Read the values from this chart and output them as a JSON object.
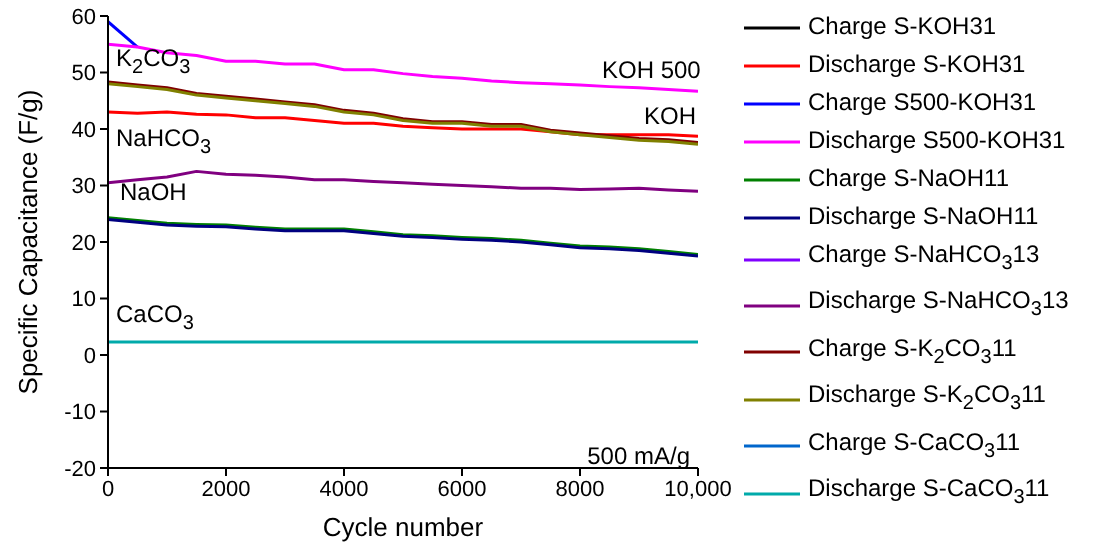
{
  "chart_data": {
    "type": "line",
    "xlabel": "Cycle number",
    "ylabel": "Specific Capacitance (F/g)",
    "x": [
      0,
      500,
      1000,
      1500,
      2000,
      2500,
      3000,
      3500,
      4000,
      4500,
      5000,
      5500,
      6000,
      6500,
      7000,
      7500,
      8000,
      8500,
      9000,
      9500,
      10000
    ],
    "xlim": [
      0,
      10000
    ],
    "xticks": [
      0,
      2000,
      4000,
      6000,
      8000,
      {
        "value": 10000,
        "label": "10,000"
      }
    ],
    "ylim": [
      -20,
      60
    ],
    "yticks": [
      -20,
      -10,
      0,
      10,
      20,
      30,
      40,
      50,
      60
    ],
    "grid": false,
    "legend": "right",
    "marker": "none",
    "line_style": "solid",
    "series": [
      {
        "name": "Charge S-KOH31",
        "color": "#000000",
        "values": [
          null,
          null,
          null,
          null,
          null,
          null,
          null,
          null,
          null,
          null,
          null,
          null,
          null,
          null,
          null,
          null,
          null,
          null,
          null,
          null,
          null
        ]
      },
      {
        "name": "Discharge S-KOH31",
        "color": "#ff0000",
        "values": [
          43,
          42.8,
          43,
          42.6,
          42.5,
          42,
          42,
          41.5,
          41,
          41,
          40.5,
          40.2,
          40,
          40,
          40,
          39.5,
          39,
          39,
          39,
          39,
          38.7
        ]
      },
      {
        "name": "Charge S500-KOH31",
        "color": "#0000ff",
        "values": [
          59,
          54.5,
          null,
          null,
          null,
          null,
          null,
          null,
          null,
          null,
          null,
          null,
          null,
          null,
          null,
          null,
          null,
          null,
          null,
          null,
          null
        ]
      },
      {
        "name": "Discharge S500-KOH31",
        "color": "#ff00ff",
        "values": [
          55,
          54.5,
          53.5,
          53,
          52,
          52,
          51.5,
          51.5,
          50.5,
          50.5,
          49.8,
          49.3,
          49,
          48.5,
          48.2,
          48,
          47.8,
          47.5,
          47.3,
          47,
          46.7
        ]
      },
      {
        "name": "Charge S-NaOH11",
        "color": "#008000",
        "values": [
          24.3,
          23.8,
          23.3,
          23.1,
          23,
          22.6,
          22.3,
          22.3,
          22.3,
          21.8,
          21.3,
          21.1,
          20.8,
          20.6,
          20.3,
          19.8,
          19.3,
          19.1,
          18.8,
          18.3,
          17.8
        ]
      },
      {
        "name": "Discharge S-NaOH11",
        "color": "#000080",
        "values": [
          24,
          23.5,
          23,
          22.8,
          22.7,
          22.3,
          22,
          22,
          22,
          21.5,
          21,
          20.8,
          20.5,
          20.3,
          20,
          19.5,
          19,
          18.8,
          18.5,
          18,
          17.5
        ]
      },
      {
        "name": "Charge S-NaHCO$_{3}$13",
        "color": "#8000ff",
        "values": [
          null,
          null,
          null,
          null,
          null,
          null,
          null,
          null,
          null,
          null,
          null,
          null,
          null,
          null,
          null,
          null,
          null,
          null,
          null,
          null,
          null
        ]
      },
      {
        "name": "Discharge S-NaHCO$_{3}$13",
        "color": "#800080",
        "values": [
          30.5,
          31,
          31.5,
          32.5,
          32,
          31.8,
          31.5,
          31,
          31,
          30.7,
          30.5,
          30.2,
          30,
          29.8,
          29.5,
          29.5,
          29.3,
          29.4,
          29.5,
          29.2,
          29
        ]
      },
      {
        "name": "Charge S-K$_{2}$CO$_{3}$11",
        "color": "#800000",
        "values": [
          48.3,
          47.8,
          47.3,
          46.3,
          45.8,
          45.3,
          44.8,
          44.3,
          43.3,
          42.8,
          41.8,
          41.3,
          41.3,
          40.8,
          40.8,
          39.8,
          39.3,
          38.8,
          38.3,
          38.1,
          37.6
        ]
      },
      {
        "name": "Discharge S-K$_{2}$CO$_{3}$11",
        "color": "#808000",
        "values": [
          48,
          47.5,
          47,
          46,
          45.5,
          45,
          44.5,
          44,
          43,
          42.5,
          41.5,
          41,
          41,
          40.5,
          40.5,
          39.5,
          39,
          38.5,
          38,
          37.8,
          37.3
        ]
      },
      {
        "name": "Charge S-CaCO$_{3}$11",
        "color": "#0066cc",
        "values": [
          null,
          null,
          null,
          null,
          null,
          null,
          null,
          null,
          null,
          null,
          null,
          null,
          null,
          null,
          null,
          null,
          null,
          null,
          null,
          null,
          null
        ]
      },
      {
        "name": "Discharge S-CaCO$_{3}$11",
        "color": "#00aaaa",
        "values": [
          2.3,
          2.3,
          2.3,
          2.3,
          2.3,
          2.3,
          2.3,
          2.3,
          2.3,
          2.3,
          2.3,
          2.3,
          2.3,
          2.3,
          2.3,
          2.3,
          2.3,
          2.3,
          2.3,
          2.3,
          2.3
        ]
      }
    ],
    "annotations": [
      "KOH 500",
      "KOH",
      "K$_{2}$CO$_{3}$",
      "NaHCO$_{3}$",
      "NaOH",
      "CaCO$_{3}$",
      "500 mA/g"
    ]
  }
}
